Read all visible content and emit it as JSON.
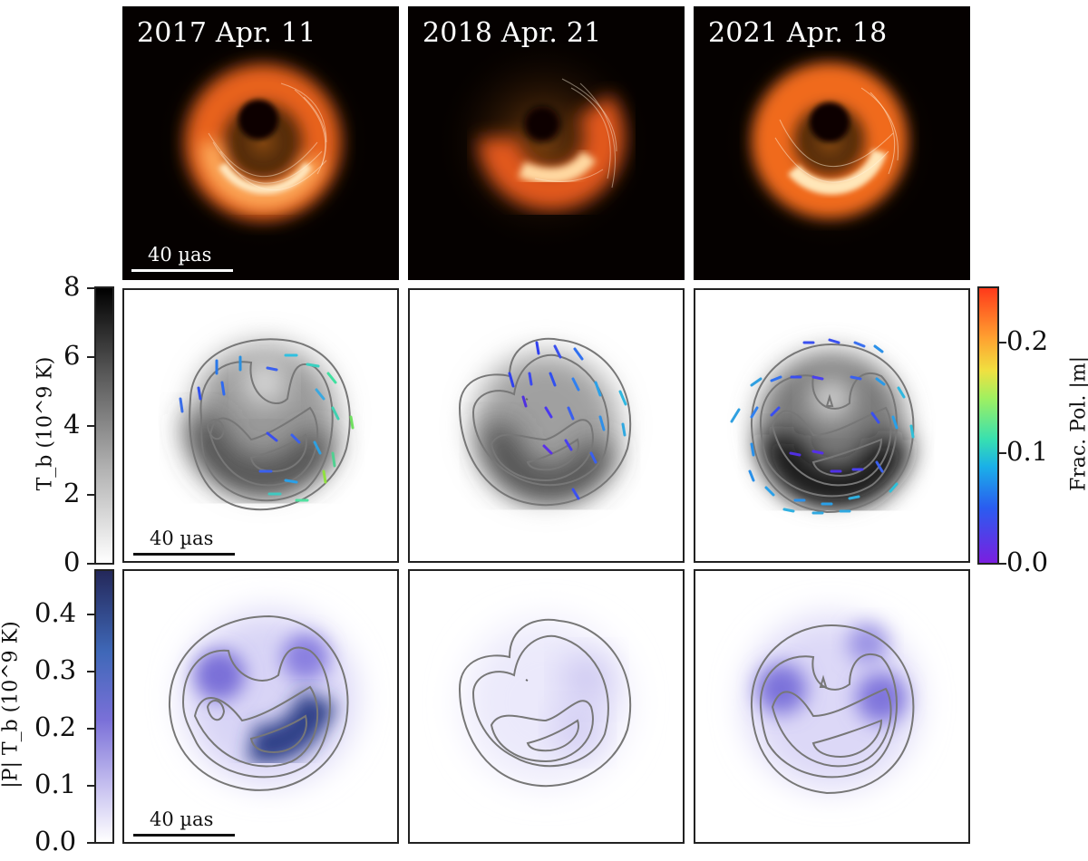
{
  "epochs": [
    {
      "label": "2017 Apr. 11"
    },
    {
      "label": "2018 Apr. 21"
    },
    {
      "label": "2021 Apr. 18"
    }
  ],
  "scale_bar_label": "40 µas",
  "colorbar_tb": {
    "label": "T_b (10^9 K)",
    "ticks": [
      "0",
      "2",
      "4",
      "6",
      "8"
    ],
    "range": [
      0,
      8
    ],
    "colormap": "gray (white to black)"
  },
  "colorbar_frac_pol": {
    "label": "Frac. Pol. |m|",
    "ticks": [
      "0.0",
      "0.1",
      "0.2"
    ],
    "range": [
      0,
      0.25
    ],
    "colormap": "rainbow (violet to red)"
  },
  "colorbar_pol_tb": {
    "label": "|P| T_b (10^9 K)",
    "ticks": [
      "0.0",
      "0.1",
      "0.2",
      "0.3",
      "0.4"
    ],
    "range": [
      0,
      0.48
    ],
    "colormap": "white to purple to dark blue"
  },
  "colors": {
    "ring_orange": "#f07a1a",
    "ring_bright": "#ffe8b0",
    "background_dark": "#050100",
    "contour": "#777777",
    "pol_purple": "#7a6fd8",
    "pol_dark": "#1e2f6a"
  }
}
